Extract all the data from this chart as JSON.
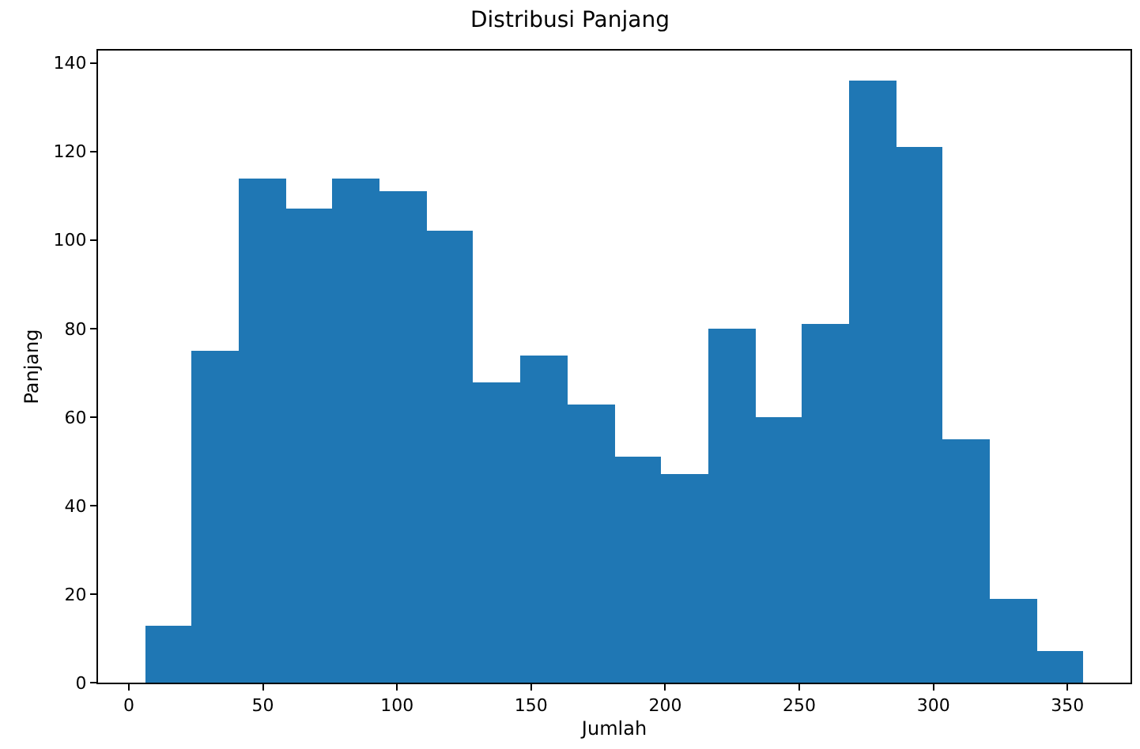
{
  "chart_data": {
    "type": "histogram",
    "title": "Distribusi Panjang",
    "xlabel": "Jumlah",
    "ylabel": "Panjang",
    "bins": [
      6,
      23.5,
      41,
      58.5,
      76,
      93.5,
      111,
      128.5,
      146,
      163.5,
      181,
      198.5,
      216,
      233.5,
      251,
      268.5,
      286,
      303.5,
      321,
      338.5,
      356
    ],
    "values": [
      13,
      75,
      114,
      107,
      114,
      111,
      102,
      68,
      74,
      63,
      51,
      47,
      80,
      60,
      81,
      136,
      121,
      55,
      19,
      7
    ],
    "color": "#1f77b4",
    "xlim": [
      -11.5,
      373.5
    ],
    "xticks": [
      0,
      50,
      100,
      150,
      200,
      250,
      300,
      350
    ],
    "ylim": [
      0,
      142.8
    ],
    "yticks": [
      0,
      20,
      40,
      60,
      80,
      100,
      120,
      140
    ]
  }
}
